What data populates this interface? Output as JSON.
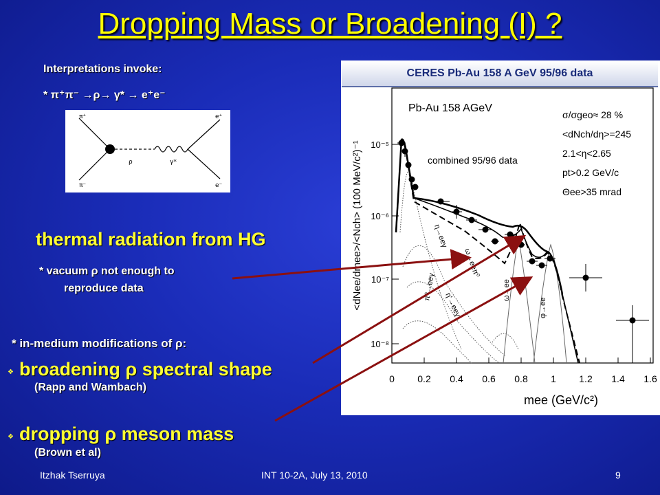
{
  "title": "Dropping Mass or Broadening (I) ?",
  "interpretations_heading": "Interpretations invoke:",
  "reaction": "* π⁺π⁻ →ρ→ γ* → e⁺e⁻",
  "feynman": {
    "labels": [
      "π⁺",
      "π⁻",
      "e⁺",
      "e⁻",
      "ρ",
      "γ*"
    ]
  },
  "thermal_heading": "thermal radiation from HG",
  "vacuum_note_line1": "*  vacuum ρ not enough to",
  "vacuum_note_line2": "reproduce data",
  "inmedium_heading": "* in-medium modifications of ρ:",
  "bullets": [
    {
      "text": "broadening ρ spectral  shape",
      "ref": "(Rapp and Wambach)"
    },
    {
      "text": "dropping ρ meson mass",
      "ref": "(Brown et al)"
    }
  ],
  "plot_header": "CERES   Pb-Au   158 A GeV    95/96 data",
  "plot": {
    "title": "Pb-Au 158 AGeV",
    "combined": "combined 95/96 data",
    "info": [
      "σ/σgeo≈ 28 %",
      "<dNch/dη>=245",
      "2.1<η<2.65",
      "pt>0.2 GeV/c",
      "Θee>35 mrad"
    ],
    "xlabel": "mee (GeV/c²)",
    "ylabel": "<dNee/dmee>/<Nch> (100 MeV/c²)⁻¹",
    "xticks": [
      "0",
      "0.2",
      "0.4",
      "0.6",
      "0.8",
      "1",
      "1.2",
      "1.4",
      "1.6"
    ],
    "yticks": [
      "10⁻⁵",
      "10⁻⁶",
      "10⁻⁷",
      "10⁻⁸"
    ],
    "channel_labels": [
      "η→eeγ",
      "ω→eeπ⁰",
      "π⁰→eeγ",
      "ω→ee",
      "φ→ee",
      "η'→eeγ"
    ]
  },
  "footer": {
    "author": "Itzhak Tserruya",
    "venue": "INT 10-2A, July 13, 2010",
    "page": "9"
  },
  "colors": {
    "accent_yellow": "#ffff00",
    "arrow": "#8b1010",
    "background": "#1a2cb8"
  }
}
